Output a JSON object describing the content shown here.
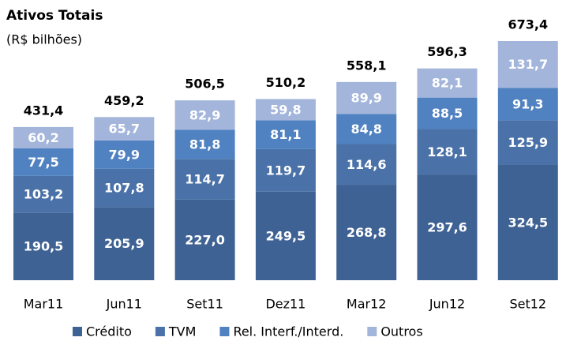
{
  "chart_data": {
    "type": "stacked_bar",
    "title": "Ativos Totais",
    "subtitle": "(R$ bilhões)",
    "categories": [
      "Mar11",
      "Jun11",
      "Set11",
      "Dez11",
      "Mar12",
      "Jun12",
      "Set12"
    ],
    "series": [
      {
        "name": "Crédito",
        "color": "#3f6294",
        "values": [
          190.5,
          205.9,
          227.0,
          249.5,
          268.8,
          297.6,
          324.5
        ],
        "value_labels": [
          "190,5",
          "205,9",
          "227,0",
          "249,5",
          "268,8",
          "297,6",
          "324,5"
        ]
      },
      {
        "name": "TVM",
        "color": "#4a72a8",
        "values": [
          103.2,
          107.8,
          114.7,
          119.7,
          114.6,
          128.1,
          125.9
        ],
        "value_labels": [
          "103,2",
          "107,8",
          "114,7",
          "119,7",
          "114,6",
          "128,1",
          "125,9"
        ]
      },
      {
        "name": "Rel. Interf./Interd.",
        "color": "#5081c0",
        "values": [
          77.5,
          79.9,
          81.8,
          81.1,
          84.8,
          88.5,
          91.3
        ],
        "value_labels": [
          "77,5",
          "79,9",
          "81,8",
          "81,1",
          "84,8",
          "88,5",
          "91,3"
        ]
      },
      {
        "name": "Outros",
        "color": "#a3b5db",
        "values": [
          60.2,
          65.7,
          82.9,
          59.8,
          89.9,
          82.1,
          131.7
        ],
        "value_labels": [
          "60,2",
          "65,7",
          "82,9",
          "59,8",
          "89,9",
          "82,1",
          "131,7"
        ]
      }
    ],
    "totals": [
      431.4,
      459.2,
      506.5,
      510.2,
      558.1,
      596.3,
      673.4
    ],
    "total_labels": [
      "431,4",
      "459,2",
      "506,5",
      "510,2",
      "558,1",
      "596,3",
      "673,4"
    ]
  }
}
